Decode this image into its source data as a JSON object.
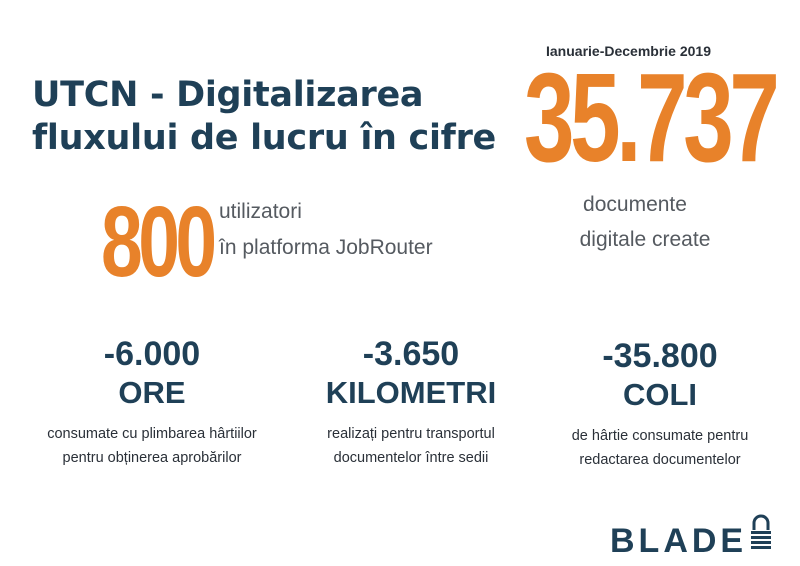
{
  "title": {
    "line1": "UTCN - Digitalizarea",
    "line2": "fluxului de lucru în cifre"
  },
  "period": "Ianuarie-Decembrie 2019",
  "documents": {
    "value": "35.737",
    "label_line1": "documente",
    "label_line2": "digitale create"
  },
  "users": {
    "value": "800",
    "label_line1": "utilizatori",
    "label_line2": "în platforma JobRouter"
  },
  "stats": [
    {
      "value": "-6.000",
      "unit": "ORE",
      "desc_line1": "consumate cu plimbarea hârtiilor",
      "desc_line2": "pentru obținerea aprobărilor"
    },
    {
      "value": "-3.650",
      "unit": "KILOMETRI",
      "desc_line1": "realizați pentru transportul",
      "desc_line2": "documentelor între sedii"
    },
    {
      "value": "-35.800",
      "unit": "COLI",
      "desc_line1": "de hârtie consumate pentru",
      "desc_line2": "redactarea documentelor"
    }
  ],
  "logo": {
    "text": "BLADE",
    "icon": "padlock-icon"
  },
  "colors": {
    "navy": "#1f4057",
    "orange": "#e8822a",
    "gray": "#555a60"
  }
}
